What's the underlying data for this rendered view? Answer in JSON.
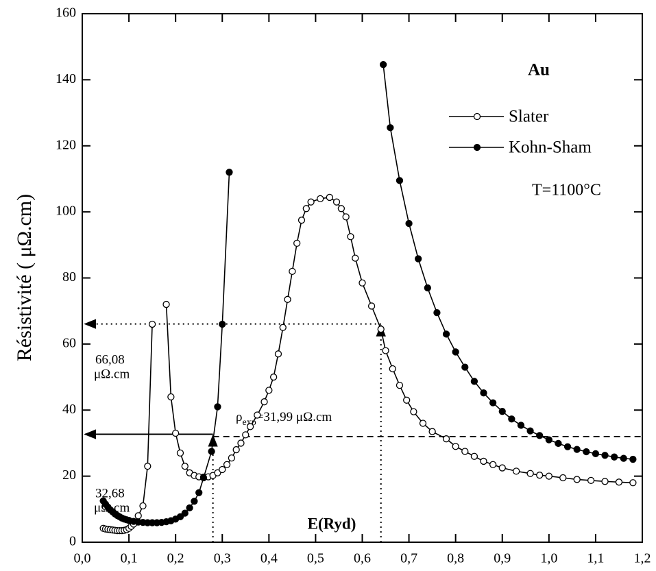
{
  "chart_data": {
    "type": "line",
    "xlabel": "E(Ryd)",
    "ylabel": "Résistivité ( μΩ.cm)",
    "xlim": [
      0,
      1.2
    ],
    "ylim": [
      0,
      160
    ],
    "xticks": [
      {
        "value": 0,
        "label": "0,0"
      },
      {
        "value": 0.1,
        "label": "0,1"
      },
      {
        "value": 0.2,
        "label": "0,2"
      },
      {
        "value": 0.3,
        "label": "0,3"
      },
      {
        "value": 0.4,
        "label": "0,4"
      },
      {
        "value": 0.5,
        "label": "0,5"
      },
      {
        "value": 0.6,
        "label": "0,6"
      },
      {
        "value": 0.7,
        "label": "0,7"
      },
      {
        "value": 0.8,
        "label": "0,8"
      },
      {
        "value": 0.9,
        "label": "0,9"
      },
      {
        "value": 1.0,
        "label": "1,0"
      },
      {
        "value": 1.1,
        "label": "1,1"
      },
      {
        "value": 1.2,
        "label": "1,2"
      }
    ],
    "yticks": [
      0,
      20,
      40,
      60,
      80,
      100,
      120,
      140,
      160
    ],
    "legend": "upper right",
    "element_label": "Au",
    "temperature_label": "T=1100°C",
    "series": [
      {
        "name": "Slater",
        "color": "#000000",
        "marker": "open",
        "x": [
          0.045,
          0.05,
          0.055,
          0.06,
          0.065,
          0.07,
          0.075,
          0.08,
          0.085,
          0.09,
          0.095,
          0.1,
          0.105,
          0.11,
          0.12,
          0.13,
          0.14,
          0.15,
          0.165,
          0.18,
          0.19,
          0.2,
          0.21,
          0.22,
          0.23,
          0.24,
          0.25,
          0.26,
          0.27,
          0.28,
          0.29,
          0.3,
          0.31,
          0.32,
          0.33,
          0.34,
          0.35,
          0.36,
          0.375,
          0.39,
          0.4,
          0.41,
          0.42,
          0.43,
          0.44,
          0.45,
          0.46,
          0.47,
          0.48,
          0.49,
          0.51,
          0.53,
          0.545,
          0.555,
          0.565,
          0.575,
          0.585,
          0.6,
          0.62,
          0.64,
          0.65,
          0.665,
          0.68,
          0.695,
          0.71,
          0.73,
          0.75,
          0.78,
          0.8,
          0.82,
          0.84,
          0.86,
          0.88,
          0.9,
          0.93,
          0.96,
          0.98,
          1.0,
          1.03,
          1.06,
          1.09,
          1.12,
          1.15,
          1.18
        ],
        "values": [
          4.2,
          4.0,
          3.9,
          3.8,
          3.7,
          3.6,
          3.5,
          3.5,
          3.5,
          3.6,
          3.8,
          4.2,
          4.8,
          5.5,
          8,
          11,
          23,
          66,
          null,
          72,
          44,
          33,
          27,
          23,
          21,
          20.2,
          19.8,
          19.7,
          19.8,
          20.2,
          21,
          22,
          23.5,
          25.5,
          28,
          30,
          32.5,
          35,
          38.5,
          42.5,
          46,
          50,
          57,
          65,
          73.5,
          82,
          90.5,
          97.5,
          101,
          103,
          104,
          104.4,
          103,
          101,
          98.5,
          92.5,
          86,
          78.5,
          71.5,
          64.5,
          58,
          52.5,
          47.5,
          43,
          39.5,
          36,
          33.5,
          31.3,
          29,
          27.5,
          26,
          24.5,
          23.5,
          22.5,
          21.5,
          20.8,
          20.3,
          20,
          19.5,
          19,
          18.7,
          18.4,
          18.2,
          18
        ]
      },
      {
        "name": "Kohn-Sham",
        "color": "#000000",
        "marker": "filled",
        "x": [
          0.045,
          0.05,
          0.055,
          0.06,
          0.065,
          0.07,
          0.075,
          0.08,
          0.085,
          0.09,
          0.095,
          0.1,
          0.11,
          0.12,
          0.13,
          0.14,
          0.15,
          0.16,
          0.17,
          0.18,
          0.19,
          0.2,
          0.21,
          0.22,
          0.23,
          0.24,
          0.25,
          0.26,
          0.277,
          0.29,
          0.3,
          0.315,
          0.48,
          0.645,
          0.66,
          0.68,
          0.7,
          0.72,
          0.74,
          0.76,
          0.78,
          0.8,
          0.82,
          0.84,
          0.86,
          0.88,
          0.9,
          0.92,
          0.94,
          0.96,
          0.98,
          1.0,
          1.02,
          1.04,
          1.06,
          1.08,
          1.1,
          1.12,
          1.14,
          1.16,
          1.18
        ],
        "values": [
          12.5,
          11.5,
          10.6,
          9.8,
          9.2,
          8.6,
          8.1,
          7.7,
          7.3,
          7.0,
          6.8,
          6.6,
          6.3,
          6.1,
          6.0,
          5.9,
          5.9,
          5.9,
          6.0,
          6.2,
          6.5,
          7.0,
          7.7,
          8.8,
          10.4,
          12.4,
          15,
          19.5,
          27.5,
          41,
          66,
          112,
          null,
          144.6,
          125.5,
          109.5,
          96.5,
          85.8,
          77,
          69.5,
          63,
          57.6,
          53,
          48.7,
          45.2,
          42.2,
          39.6,
          37.3,
          35.4,
          33.7,
          32.3,
          31,
          29.9,
          28.9,
          28.1,
          27.4,
          26.8,
          26.3,
          25.8,
          25.4,
          25.1
        ]
      }
    ],
    "markers": [
      {
        "x": 0.64,
        "y": 66.08,
        "label": "66,08",
        "unit": "μΩ.cm"
      },
      {
        "x": 0.28,
        "y": 32.68,
        "label": "32,68",
        "unit": "μΩ.cm"
      }
    ],
    "experimental": {
      "y": 31.99,
      "symbol": "ρ",
      "subscript": "exp",
      "label": "=31,99 μΩ.cm"
    }
  }
}
